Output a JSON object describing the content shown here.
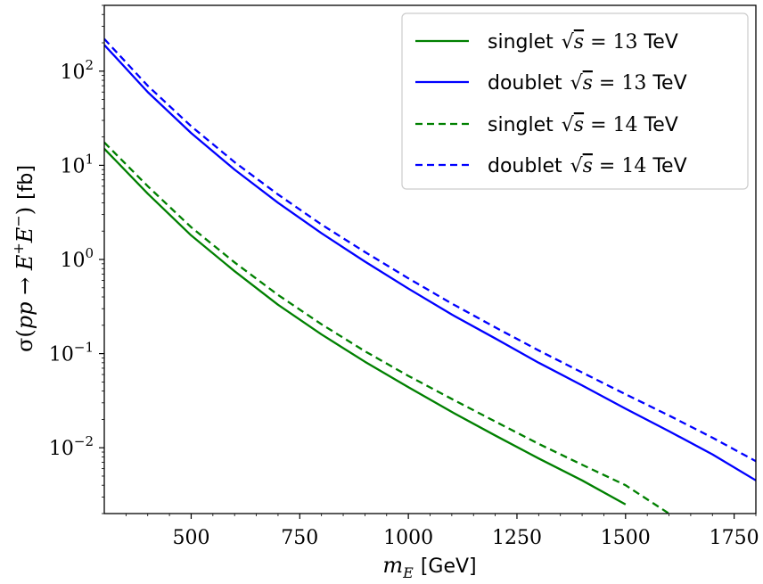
{
  "chart_data": {
    "type": "line",
    "xlabel": {
      "symbol": "m",
      "subscript": "E",
      "unit": "[GeV]"
    },
    "ylabel": {
      "sigma": "σ(",
      "pp": "pp",
      "arrow": " → ",
      "e": "E",
      "plus": "+",
      "e2": "E",
      "minus": "−",
      "close": ")",
      "unit": "[fb]"
    },
    "x_ticks": [
      500,
      750,
      1000,
      1250,
      1500,
      1750
    ],
    "x_tick_labels": [
      "500",
      "750",
      "1000",
      "1250",
      "1500",
      "1750"
    ],
    "y_ticks": [
      2,
      1,
      0,
      -1,
      -2
    ],
    "y_tick_labels": [
      {
        "base": "10",
        "exp": "2"
      },
      {
        "base": "10",
        "exp": "1"
      },
      {
        "base": "10",
        "exp": "0"
      },
      {
        "base": "10",
        "exp": "−1"
      },
      {
        "base": "10",
        "exp": "−2"
      }
    ],
    "xlim": [
      300,
      1800
    ],
    "ylim": [
      0.002,
      500
    ],
    "y_scale": "log",
    "grid": false,
    "legend_position": "top-right",
    "series": [
      {
        "name": {
          "prefix": "singlet ",
          "math": "13",
          "suffix": " TeV"
        },
        "color": "#008000",
        "dash": "solid",
        "x": [
          300,
          400,
          500,
          600,
          700,
          800,
          900,
          1000,
          1100,
          1200,
          1300,
          1400,
          1500
        ],
        "y": [
          15,
          5.0,
          1.8,
          0.75,
          0.33,
          0.16,
          0.082,
          0.044,
          0.024,
          0.0135,
          0.0077,
          0.0045,
          0.0025
        ]
      },
      {
        "name": {
          "prefix": "doublet ",
          "math": "13",
          "suffix": " TeV"
        },
        "color": "#0000ff",
        "dash": "solid",
        "x": [
          300,
          400,
          500,
          600,
          700,
          800,
          900,
          1000,
          1100,
          1200,
          1300,
          1400,
          1500,
          1600,
          1700,
          1800
        ],
        "y": [
          190,
          60,
          22,
          9.0,
          4.0,
          1.9,
          0.95,
          0.49,
          0.26,
          0.145,
          0.08,
          0.046,
          0.026,
          0.015,
          0.0085,
          0.0045
        ]
      },
      {
        "name": {
          "prefix": "singlet ",
          "math": "14",
          "suffix": " TeV"
        },
        "color": "#008000",
        "dash": "dashed",
        "x": [
          300,
          400,
          500,
          600,
          700,
          800,
          900,
          1000,
          1100,
          1200,
          1300,
          1400,
          1500,
          1600
        ],
        "y": [
          17.5,
          6.0,
          2.2,
          0.93,
          0.42,
          0.205,
          0.106,
          0.058,
          0.033,
          0.019,
          0.011,
          0.0066,
          0.004,
          0.002
        ]
      },
      {
        "name": {
          "prefix": "doublet ",
          "math": "14",
          "suffix": " TeV"
        },
        "color": "#0000ff",
        "dash": "dashed",
        "x": [
          300,
          400,
          500,
          600,
          700,
          800,
          900,
          1000,
          1100,
          1200,
          1300,
          1400,
          1500,
          1600,
          1700,
          1800
        ],
        "y": [
          220,
          70,
          26,
          10.8,
          4.9,
          2.35,
          1.2,
          0.63,
          0.34,
          0.19,
          0.108,
          0.063,
          0.037,
          0.022,
          0.0128,
          0.0072
        ]
      }
    ]
  }
}
